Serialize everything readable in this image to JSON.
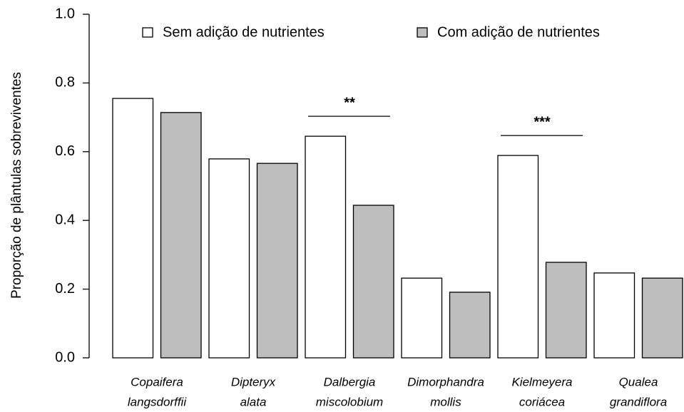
{
  "chart_data": {
    "type": "bar",
    "ylabel": "Proporção de plântulas sobreviventes",
    "categories": [
      [
        "Copaifera",
        "langsdorffii"
      ],
      [
        "Dipteryx",
        "alata"
      ],
      [
        "Dalbergia",
        "miscolobium"
      ],
      [
        "Dimorphandra",
        "mollis"
      ],
      [
        "Kielmeyera",
        "coriácea"
      ],
      [
        "Qualea",
        "grandiflora"
      ]
    ],
    "series": [
      {
        "name": "Sem adição de nutrientes",
        "color": "#ffffff",
        "values": [
          0.755,
          0.579,
          0.645,
          0.232,
          0.589,
          0.247
        ]
      },
      {
        "name": "Com adição de nutrientes",
        "color": "#bebebe",
        "values": [
          0.714,
          0.566,
          0.444,
          0.191,
          0.278,
          0.232
        ]
      }
    ],
    "ylim": [
      0,
      1
    ],
    "yticks": [
      {
        "value": 0,
        "label": "0.0"
      },
      0.2,
      0.4,
      0.6,
      0.8,
      {
        "value": 1,
        "label": "1.0"
      }
    ],
    "annotations": [
      {
        "text": "**",
        "category": 2
      },
      {
        "text": "***",
        "category": 4
      }
    ],
    "legend": "top"
  }
}
